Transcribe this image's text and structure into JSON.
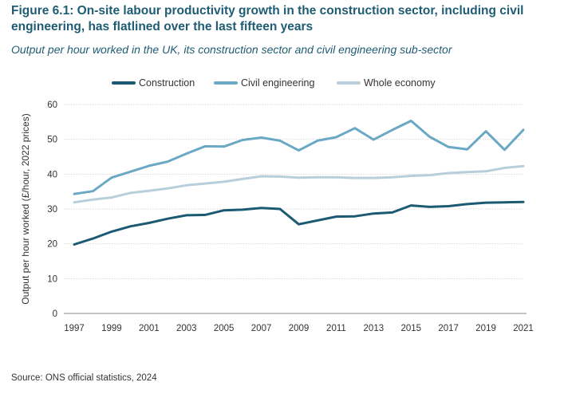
{
  "figure": {
    "title": "Figure 6.1: On-site labour productivity growth in the construction sector, including civil engineering, has flatlined over the last fifteen years",
    "subtitle": "Output per hour worked in the UK, its construction sector and civil engineering sub-sector",
    "source": "Source: ONS official statistics, 2024"
  },
  "chart_data": {
    "type": "line",
    "ylabel": "Output per hour worked (£/hour, 2022 prices)",
    "xlabel": "",
    "ylim": [
      0,
      60
    ],
    "yticks": [
      0,
      10,
      20,
      30,
      40,
      50,
      60
    ],
    "xlim": [
      1997,
      2021
    ],
    "xticks": [
      1997,
      1999,
      2001,
      2003,
      2005,
      2007,
      2009,
      2011,
      2013,
      2015,
      2017,
      2019,
      2021
    ],
    "grid": "horizontal",
    "legend_position": "top",
    "x": [
      1997,
      1998,
      1999,
      2000,
      2001,
      2002,
      2003,
      2004,
      2005,
      2006,
      2007,
      2008,
      2009,
      2010,
      2011,
      2012,
      2013,
      2014,
      2015,
      2016,
      2017,
      2018,
      2019,
      2020,
      2021
    ],
    "series": [
      {
        "name": "Construction",
        "color": "#1c5a73",
        "values": [
          19.8,
          21.5,
          23.5,
          25.0,
          26.0,
          27.2,
          28.2,
          28.3,
          29.6,
          29.8,
          30.3,
          30.0,
          25.6,
          26.7,
          27.8,
          27.9,
          28.7,
          29.0,
          31.0,
          30.6,
          30.8,
          31.4,
          31.8,
          31.9,
          32.0
        ]
      },
      {
        "name": "Civil engineering",
        "color": "#6aa8c4",
        "values": [
          34.3,
          35.1,
          39.0,
          40.7,
          42.4,
          43.6,
          45.9,
          48.0,
          47.9,
          49.8,
          50.5,
          49.6,
          46.8,
          49.6,
          50.6,
          53.2,
          49.9,
          52.7,
          55.3,
          50.7,
          47.8,
          47.1,
          52.3,
          47.0,
          52.7
        ]
      },
      {
        "name": "Whole economy",
        "color": "#b8cfdb",
        "values": [
          31.9,
          32.7,
          33.3,
          34.6,
          35.2,
          35.9,
          36.8,
          37.3,
          37.8,
          38.6,
          39.4,
          39.3,
          39.0,
          39.1,
          39.1,
          38.9,
          38.9,
          39.1,
          39.5,
          39.7,
          40.3,
          40.6,
          40.8,
          41.8,
          42.3
        ]
      }
    ]
  }
}
